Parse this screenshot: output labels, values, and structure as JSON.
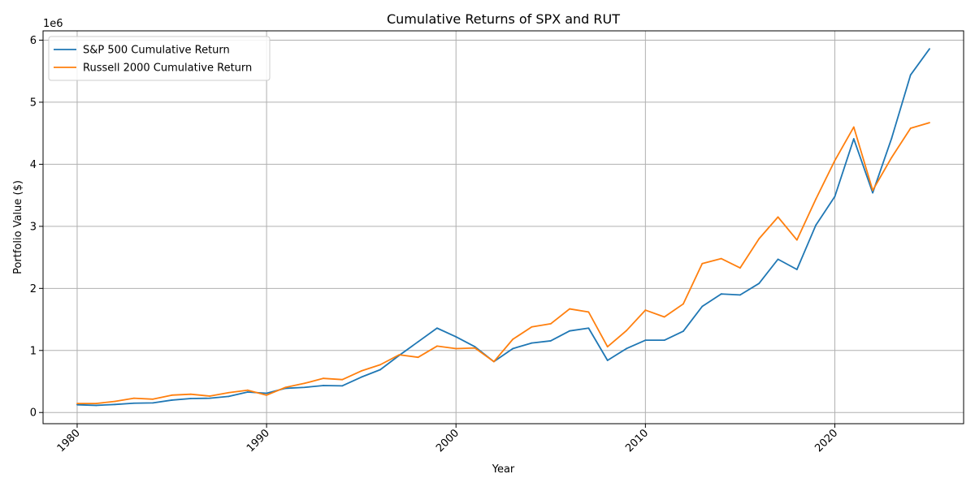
{
  "chart_data": {
    "type": "line",
    "title": "Cumulative Returns of SPX and RUT",
    "xlabel": "Year",
    "ylabel": "Portfolio Value ($)",
    "y_offset_label": "1e6",
    "xlim": [
      1978.2,
      2026.8
    ],
    "ylim": [
      -180000,
      6150000
    ],
    "xticks": [
      1980,
      1990,
      2000,
      2010,
      2020
    ],
    "yticks": [
      0,
      1,
      2,
      3,
      4,
      5,
      6
    ],
    "ytick_scale": 1000000,
    "grid": true,
    "legend_position": "top-left",
    "x": [
      1980,
      1981,
      1982,
      1983,
      1984,
      1985,
      1986,
      1987,
      1988,
      1989,
      1990,
      1991,
      1992,
      1993,
      1994,
      1995,
      1996,
      1997,
      1998,
      1999,
      2000,
      2001,
      2002,
      2003,
      2004,
      2005,
      2006,
      2007,
      2008,
      2009,
      2010,
      2011,
      2012,
      2013,
      2014,
      2015,
      2016,
      2017,
      2018,
      2019,
      2020,
      2021,
      2022,
      2023,
      2024,
      2025
    ],
    "series": [
      {
        "name": "S&P 500 Cumulative Return",
        "color": "#1f77b4",
        "values": [
          125000,
          115000,
          130000,
          150000,
          155000,
          200000,
          225000,
          230000,
          260000,
          330000,
          310000,
          390000,
          405000,
          435000,
          430000,
          570000,
          690000,
          920000,
          1140000,
          1360000,
          1220000,
          1060000,
          820000,
          1030000,
          1120000,
          1155000,
          1315000,
          1360000,
          840000,
          1030000,
          1165000,
          1165000,
          1310000,
          1710000,
          1910000,
          1895000,
          2080000,
          2470000,
          2305000,
          3020000,
          3480000,
          4410000,
          3540000,
          4420000,
          5440000,
          5860000
        ]
      },
      {
        "name": "Russell 2000 Cumulative Return",
        "color": "#ff7f0e",
        "values": [
          145000,
          145000,
          180000,
          230000,
          215000,
          280000,
          295000,
          265000,
          320000,
          360000,
          280000,
          405000,
          470000,
          550000,
          530000,
          670000,
          770000,
          930000,
          890000,
          1070000,
          1030000,
          1040000,
          820000,
          1180000,
          1380000,
          1430000,
          1670000,
          1620000,
          1060000,
          1320000,
          1650000,
          1540000,
          1750000,
          2400000,
          2480000,
          2330000,
          2800000,
          3150000,
          2780000,
          3440000,
          4060000,
          4600000,
          3580000,
          4110000,
          4580000,
          4670000
        ]
      }
    ]
  }
}
